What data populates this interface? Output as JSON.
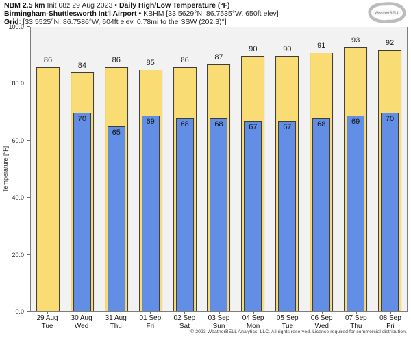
{
  "header": {
    "model": "NBM 2.5 km",
    "init_info": "Init 08z 29 Aug 2023",
    "separator": "•",
    "product_title": "Daily High/Low Temperature (°F)",
    "station_name": "Birmingham-Shuttlesworth Int'l Airport",
    "station_details": "KBHM [33.5629°N, 86.7535°W, 650ft elev]",
    "grid_label": "Grid",
    "grid_details": ": [33.5525°N, 86.7586°W, 604ft elev, 0.78mi to the SSW (202.3)°]"
  },
  "logo": {
    "brand": "WeatherBELL"
  },
  "chart_data": {
    "type": "bar",
    "title": "Daily High/Low Temperature (°F)",
    "ylabel": "Temperature [°F]",
    "xlabel": "",
    "ylim": [
      0,
      100
    ],
    "yticks": [
      0,
      20,
      40,
      60,
      80,
      100
    ],
    "ytick_labels": [
      "0.0",
      "20.0",
      "40.0",
      "60.0",
      "80.0",
      "100.0"
    ],
    "grid": false,
    "legend": "none",
    "plot_background": "#f2f2f2",
    "categories": [
      {
        "date": "29 Aug",
        "day": "Tue"
      },
      {
        "date": "30 Aug",
        "day": "Wed"
      },
      {
        "date": "31 Aug",
        "day": "Thu"
      },
      {
        "date": "01 Sep",
        "day": "Fri"
      },
      {
        "date": "02 Sep",
        "day": "Sat"
      },
      {
        "date": "03 Sep",
        "day": "Sun"
      },
      {
        "date": "04 Sep",
        "day": "Mon"
      },
      {
        "date": "05 Sep",
        "day": "Tue"
      },
      {
        "date": "06 Sep",
        "day": "Wed"
      },
      {
        "date": "07 Sep",
        "day": "Thu"
      },
      {
        "date": "08 Sep",
        "day": "Fri"
      }
    ],
    "series": [
      {
        "name": "Daily High",
        "color": "#f9dc73",
        "border_color": "#3c3c3c",
        "values": [
          86,
          84,
          86,
          85,
          86,
          87,
          90,
          90,
          91,
          93,
          92
        ]
      },
      {
        "name": "Daily Low",
        "color": "#628fe5",
        "border_color": "#3c3c3c",
        "values": [
          null,
          70,
          65,
          69,
          68,
          68,
          67,
          67,
          68,
          69,
          70
        ]
      }
    ]
  },
  "footer": "© 2023 WeatherBELL Analytics, LLC. All rights reserved. License required for commercial distribution."
}
